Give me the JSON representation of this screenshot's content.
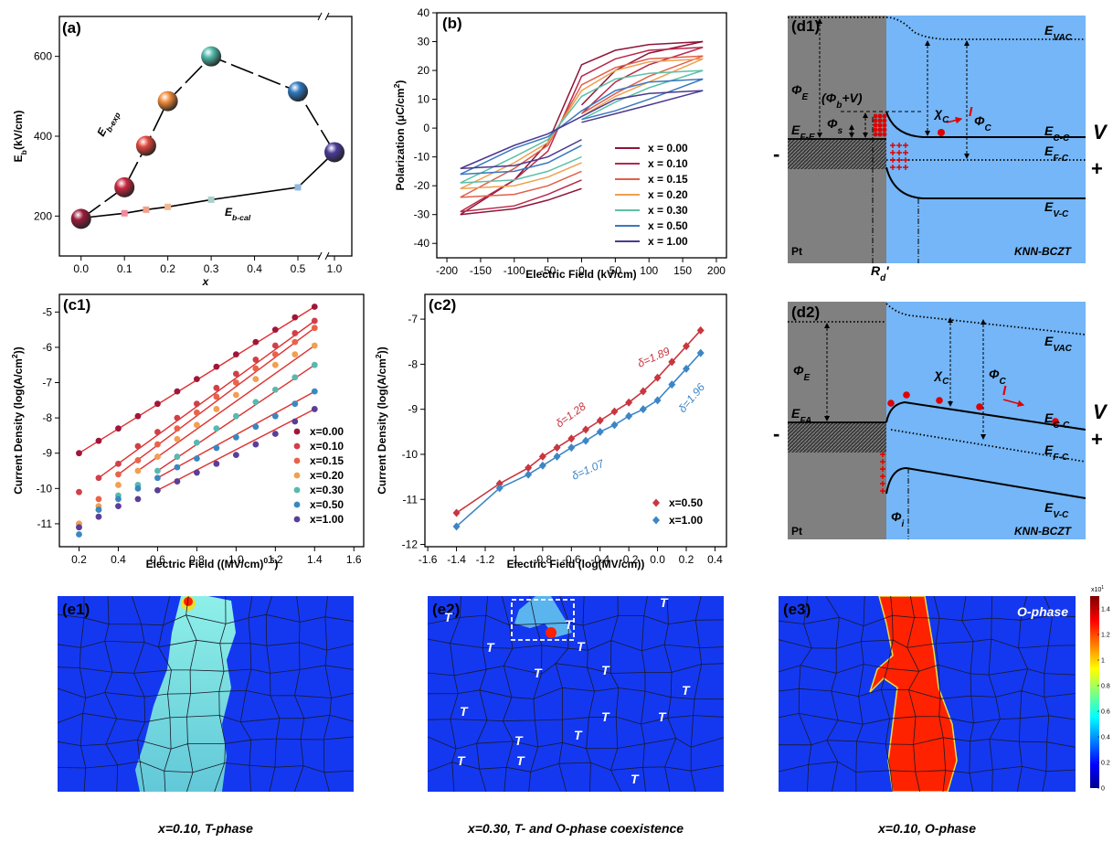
{
  "chart_data": [
    {
      "type": "scatter",
      "label": "(a)",
      "xlabel": "x",
      "ylabel": [
        "E",
        "b",
        "(kV/cm)"
      ],
      "xlim": [
        -0.05,
        1.04
      ],
      "xbreak": [
        0.5,
        1.0
      ],
      "ylim": [
        100,
        700
      ],
      "xticks": [
        {
          "value": 0,
          "label": "0.0"
        },
        0.1,
        0.2,
        0.3,
        0.4,
        0.5,
        {
          "value": 1,
          "label": "1.0"
        }
      ],
      "yticks": [
        200,
        400,
        600
      ],
      "series": [
        {
          "x": [
            0,
            0.1,
            0.15,
            0.2,
            0.3,
            0.5,
            1.0
          ],
          "values": [
            195,
            207,
            216,
            223,
            241,
            272,
            360
          ],
          "colors": [
            "#b0304a",
            "#f08a9a",
            "#f0a08a",
            "#f0b890",
            "#a8d0c8",
            "#90b8e0",
            "#4a3b98"
          ],
          "marker": "square",
          "line": "solid"
        },
        {
          "x": [
            0,
            0.1,
            0.15,
            0.2,
            0.3,
            0.5,
            1.0
          ],
          "values": [
            193,
            272,
            376,
            488,
            600,
            512,
            360
          ],
          "colors": [
            "#9b1b3b",
            "#c8283f",
            "#e0473e",
            "#f08b3a",
            "#4fb8a8",
            "#2f78c0",
            "#4a3b98"
          ],
          "marker": "sphere",
          "line": "dashed"
        }
      ],
      "annotations": [
        {
          "text": [
            "E",
            "b-exp"
          ]
        },
        {
          "text": [
            "E",
            "b-cal"
          ]
        }
      ]
    },
    {
      "type": "line",
      "label": "(b)",
      "xlabel": "Electric Field (kV/cm)",
      "ylabel": [
        "Polarization (μC/cm",
        "2",
        ")"
      ],
      "xlim": [
        -215,
        215
      ],
      "ylim": [
        -45,
        40
      ],
      "xticks": [
        -200,
        -150,
        -100,
        -50,
        0,
        50,
        100,
        150,
        200
      ],
      "yticks": [
        -40,
        -30,
        -20,
        -10,
        0,
        10,
        20,
        30,
        40
      ],
      "legend": "lower right",
      "series": [
        {
          "name": "x = 0.00",
          "color": "#8e1538",
          "x": [
            0,
            50,
            100,
            180,
            100,
            50,
            0,
            -50,
            -100,
            -180,
            -100,
            -50,
            0
          ],
          "values": [
            8,
            20,
            26,
            30,
            29,
            27,
            22,
            -5,
            -18,
            -30,
            -28,
            -25,
            -21
          ]
        },
        {
          "name": "x = 0.10",
          "color": "#b8284a",
          "x": [
            0,
            50,
            100,
            180,
            100,
            50,
            0,
            -50,
            -100,
            -180,
            -100,
            -50,
            0
          ],
          "values": [
            5,
            16,
            22,
            28,
            27,
            24,
            18,
            -8,
            -18,
            -29,
            -27,
            -23,
            -18
          ]
        },
        {
          "name": "x = 0.15",
          "color": "#e0604a",
          "x": [
            0,
            50,
            100,
            180,
            100,
            50,
            0,
            -50,
            -100,
            -180,
            -100,
            -50,
            0
          ],
          "values": [
            5,
            12,
            18,
            25,
            24,
            21,
            15,
            -6,
            -14,
            -24,
            -23,
            -20,
            -15
          ]
        },
        {
          "name": "x = 0.20",
          "color": "#f0a050",
          "x": [
            0,
            50,
            100,
            180,
            100,
            50,
            0,
            -50,
            -100,
            -180,
            -100,
            -50,
            0
          ],
          "values": [
            4,
            11,
            16,
            24,
            23,
            20,
            13,
            -5,
            -12,
            -21,
            -20,
            -17,
            -12
          ]
        },
        {
          "name": "x = 0.30",
          "color": "#5cc0a8",
          "x": [
            0,
            50,
            100,
            180,
            100,
            50,
            0,
            -50,
            -100,
            -180,
            -100,
            -50,
            0
          ],
          "values": [
            3,
            9,
            14,
            20,
            19,
            17,
            11,
            -4,
            -10,
            -19,
            -18,
            -15,
            -10
          ]
        },
        {
          "name": "x = 0.50",
          "color": "#3a78c0",
          "x": [
            0,
            50,
            100,
            180,
            100,
            50,
            0,
            -50,
            -100,
            -180,
            -100,
            -50,
            0
          ],
          "values": [
            3,
            6,
            10,
            17,
            16,
            13,
            6,
            -3,
            -7,
            -16,
            -15,
            -12,
            -6
          ]
        },
        {
          "name": "x = 1.00",
          "color": "#4b3a8f",
          "x": [
            0,
            50,
            100,
            180,
            100,
            50,
            0,
            -50,
            -100,
            -180,
            -100,
            -50,
            0
          ],
          "values": [
            2,
            5,
            8,
            13,
            12,
            10,
            4,
            -2,
            -6,
            -14,
            -13,
            -10,
            -4
          ]
        }
      ]
    },
    {
      "type": "scatter",
      "label": "(c1)",
      "xlabel": [
        "Electric Field ((MV/cm)",
        "0.5",
        ")"
      ],
      "ylabel": [
        "Current Density (log(A/cm",
        "2",
        "))"
      ],
      "xlim": [
        0.1,
        1.65
      ],
      "ylim": [
        -11.65,
        -4.5
      ],
      "xticks": [
        0.2,
        0.4,
        0.6,
        0.8,
        {
          "value": 1,
          "label": "1.0"
        },
        1.2,
        1.4,
        1.6
      ],
      "yticks": [
        -11,
        -10,
        -9,
        -8,
        -7,
        -6,
        -5
      ],
      "legend": "lower right",
      "fit_color": "#e03030",
      "x": [
        0.2,
        0.3,
        0.4,
        0.5,
        0.6,
        0.7,
        0.8,
        0.9,
        1.0,
        1.1,
        1.2,
        1.3,
        1.4
      ],
      "series": [
        {
          "name": "x=0.00",
          "color": "#a0163a",
          "values": [
            -9.0,
            -8.65,
            -8.3,
            -7.95,
            -7.6,
            -7.25,
            -6.9,
            -6.55,
            -6.2,
            -5.85,
            -5.5,
            -5.15,
            -4.85
          ],
          "fit": {
            "x": [
              0.2,
              1.4
            ],
            "values": [
              -9.0,
              -4.85
            ]
          }
        },
        {
          "name": "x=0.10",
          "color": "#d0404a",
          "values": [
            -10.1,
            -9.7,
            -9.3,
            -8.8,
            -8.4,
            -8.0,
            -7.6,
            -7.15,
            -6.75,
            -6.35,
            -5.95,
            -5.6,
            -5.25
          ],
          "fit": {
            "x": [
              0.3,
              1.4
            ],
            "values": [
              -9.7,
              -5.25
            ]
          }
        },
        {
          "name": "x=0.15",
          "color": "#e8634a",
          "values": [
            -11.0,
            -10.3,
            -9.6,
            -9.2,
            -8.75,
            -8.3,
            -7.85,
            -7.4,
            -7.0,
            -6.6,
            -6.2,
            -5.85,
            -5.45
          ],
          "fit": {
            "x": [
              0.4,
              1.4
            ],
            "values": [
              -9.6,
              -5.45
            ]
          }
        },
        {
          "name": "x=0.20",
          "color": "#f0a050",
          "values": [
            -11.0,
            -10.5,
            -9.9,
            -9.5,
            -9.1,
            -8.6,
            -8.2,
            -7.75,
            -7.35,
            -6.9,
            -6.5,
            -6.2,
            -5.95
          ],
          "fit": {
            "x": [
              0.5,
              1.4
            ],
            "values": [
              -9.5,
              -5.95
            ]
          }
        },
        {
          "name": "x=0.30",
          "color": "#5ab8b0",
          "values": [
            -11.1,
            -10.6,
            -10.2,
            -9.9,
            -9.5,
            -9.1,
            -8.7,
            -8.3,
            -7.95,
            -7.55,
            -7.2,
            -6.85,
            -6.5
          ],
          "fit": {
            "x": [
              0.6,
              1.4
            ],
            "values": [
              -9.5,
              -6.5
            ]
          }
        },
        {
          "name": "x=0.50",
          "color": "#3a88c0",
          "values": [
            -11.3,
            -10.6,
            -10.3,
            -10.0,
            -9.7,
            -9.4,
            -9.15,
            -8.85,
            -8.55,
            -8.25,
            -7.95,
            -7.6,
            -7.25
          ],
          "fit": {
            "x": [
              0.6,
              1.4
            ],
            "values": [
              -9.7,
              -7.25
            ]
          }
        },
        {
          "name": "x=1.00",
          "color": "#5a3e98",
          "values": [
            -11.1,
            -10.8,
            -10.5,
            -10.3,
            -10.05,
            -9.8,
            -9.55,
            -9.3,
            -9.05,
            -8.75,
            -8.45,
            -8.1,
            -7.75
          ],
          "fit": {
            "x": [
              0.6,
              1.4
            ],
            "values": [
              -10.05,
              -7.75
            ]
          }
        }
      ]
    },
    {
      "type": "scatter",
      "label": "(c2)",
      "xlabel": "Electric Field (log(MV/cm))",
      "ylabel": [
        "Current Density (log(A/cm",
        "2",
        "))"
      ],
      "xlim": [
        -1.62,
        0.48
      ],
      "ylim": [
        -12.05,
        -6.45
      ],
      "xticks": [
        -1.6,
        -1.4,
        -1.2,
        -1,
        -0.8,
        -0.6,
        -0.4,
        -0.2,
        {
          "value": 0,
          "label": "0.0"
        },
        0.2,
        0.4
      ],
      "yticks": [
        -12,
        -11,
        -10,
        -9,
        -8,
        -7
      ],
      "legend": "lower right",
      "x": [
        -1.4,
        -1.1,
        -0.9,
        -0.8,
        -0.7,
        -0.6,
        -0.5,
        -0.4,
        -0.3,
        -0.2,
        -0.1,
        0.0,
        0.1,
        0.2,
        0.3
      ],
      "series": [
        {
          "name": "x=0.50",
          "color": "#c8363f",
          "marker": "diamond",
          "line": "solid",
          "values": [
            -11.3,
            -10.65,
            -10.3,
            -10.05,
            -9.85,
            -9.65,
            -9.45,
            -9.25,
            -9.05,
            -8.85,
            -8.6,
            -8.3,
            -7.95,
            -7.6,
            -7.25
          ]
        },
        {
          "name": "x=1.00",
          "color": "#3d86c6",
          "marker": "diamond",
          "line": "solid",
          "values": [
            -11.6,
            -10.75,
            -10.45,
            -10.25,
            -10.05,
            -9.85,
            -9.7,
            -9.5,
            -9.35,
            -9.15,
            -9.0,
            -8.8,
            -8.45,
            -8.1,
            -7.75
          ]
        }
      ],
      "annotations": [
        {
          "text": "δ=1.28",
          "color": "#c8363f"
        },
        {
          "text": "δ=1.89",
          "color": "#c8363f"
        },
        {
          "text": "δ=1.07",
          "color": "#3d86c6"
        },
        {
          "text": "δ=1.96",
          "color": "#3d86c6"
        }
      ]
    }
  ],
  "diagrams": [
    {
      "texts": [
        "(d1)",
        [
          "E",
          "VAC"
        ],
        [
          "Φ",
          "E"
        ],
        [
          "(Φ",
          "b",
          "+V)"
        ],
        [
          "Φ",
          "s"
        ],
        [
          "E",
          "F-E"
        ],
        [
          "χ",
          "C"
        ],
        [
          "Φ",
          "C"
        ],
        "I",
        [
          "E",
          "C-C"
        ],
        "V",
        [
          "E",
          "F-C"
        ],
        "-",
        "+",
        [
          "E",
          "V-C"
        ],
        "Pt",
        "KNN-BCZT",
        [
          "R",
          "d",
          "'"
        ]
      ]
    },
    {
      "texts": [
        "(d2)",
        [
          "E",
          "VAC"
        ],
        [
          "Φ",
          "E"
        ],
        [
          "χ",
          "C"
        ],
        [
          "Φ",
          "C"
        ],
        "I",
        [
          "E",
          "FA"
        ],
        [
          "E",
          "C-C"
        ],
        "V",
        "-",
        "+",
        [
          "E",
          "F-C"
        ],
        [
          "E",
          "V-C"
        ],
        [
          "Φ",
          "i"
        ],
        "Pt",
        "KNN-BCZT"
      ]
    }
  ],
  "images": [
    {
      "label": "(e1)",
      "caption": "x=0.10, T-phase"
    },
    {
      "label": "(e2)",
      "caption": "x=0.30, T- and O-phase coexistence",
      "t_labels": [
        "T",
        "T",
        "T",
        "T",
        "T",
        "T",
        "T",
        "T",
        "T",
        "T",
        "T",
        "T",
        "T",
        "T",
        "T",
        "T",
        "T"
      ]
    },
    {
      "label": "(e3)",
      "caption": "x=0.10, O-phase",
      "annotation": "O-phase",
      "colorbar": {
        "lim": [
          0,
          1.5
        ],
        "ticks": [
          0,
          0.2,
          0.4,
          0.6,
          0.8,
          1,
          1.2,
          1.4
        ],
        "exponent": [
          "x10",
          "1"
        ]
      }
    }
  ]
}
